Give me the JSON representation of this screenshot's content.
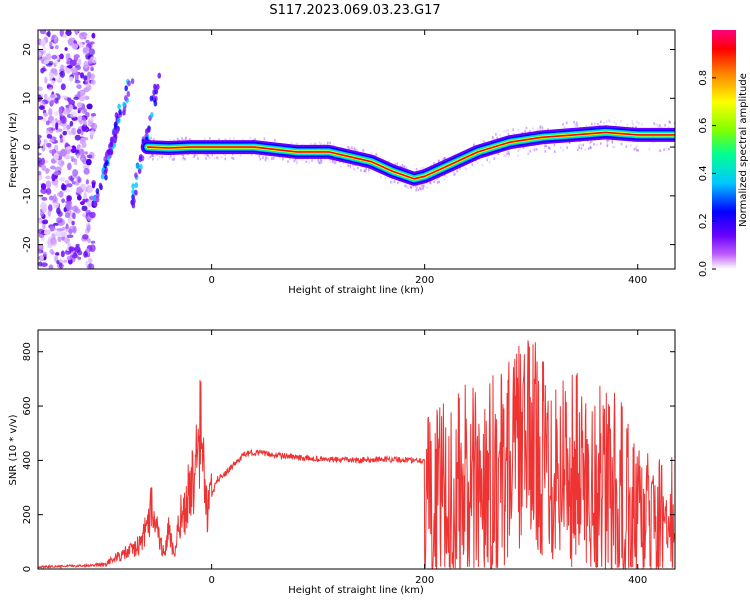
{
  "title": "S117.2023.069.03.23.G17",
  "chart_data": [
    {
      "type": "heatmap",
      "xlabel": "Height of straight line (km)",
      "ylabel": "Frequency (Hz)",
      "xlim": [
        -163,
        435
      ],
      "ylim": [
        -25,
        24
      ],
      "xticks": [
        0,
        200,
        400
      ],
      "yticks": [
        -20,
        -10,
        0,
        10,
        20
      ],
      "colorbar": {
        "label": "Normalized spectral amplitude",
        "ticks": [
          "0.0",
          "0.2",
          "0.4",
          "0.6",
          "0.8"
        ],
        "range": [
          0,
          1
        ],
        "colors": [
          "#ffffff",
          "#c060ff",
          "#6a00ff",
          "#0000ff",
          "#00c8ff",
          "#00ff90",
          "#80ff00",
          "#ffff00",
          "#ff8000",
          "#ff0000",
          "#ff0080"
        ]
      },
      "ridge": {
        "x": [
          -60,
          -40,
          -20,
          0,
          40,
          80,
          110,
          130,
          150,
          170,
          190,
          200,
          220,
          250,
          280,
          310,
          340,
          370,
          400,
          435
        ],
        "y": [
          0,
          -0.2,
          0,
          0,
          0,
          -1,
          -1,
          -2,
          -3,
          -5,
          -6.5,
          -6,
          -4,
          -1,
          1,
          2,
          2.5,
          3,
          2.5,
          2.5
        ]
      },
      "noise_region": {
        "x": [
          -163,
          -110
        ],
        "y": [
          -25,
          24
        ]
      }
    },
    {
      "type": "line",
      "xlabel": "Height of straight line (km)",
      "ylabel": "SNR (10 * v/v)",
      "xlim": [
        -163,
        435
      ],
      "ylim": [
        0,
        880
      ],
      "xticks": [
        0,
        200,
        400
      ],
      "yticks": [
        0,
        200,
        400,
        600,
        800
      ],
      "color": "#ee3333",
      "series": [
        {
          "x": [
            -163,
            -140,
            -120,
            -100,
            -90,
            -80,
            -70,
            -60,
            -55,
            -50,
            -45,
            -40,
            -35,
            -30,
            -25,
            -20,
            -15,
            -10,
            -5,
            0,
            5,
            10,
            20,
            30,
            40,
            60,
            80,
            100,
            120,
            140,
            160,
            180,
            195,
            200,
            210,
            220,
            230,
            240,
            250,
            260,
            270,
            280,
            290,
            300,
            310,
            320,
            330,
            340,
            350,
            360,
            370,
            380,
            390,
            400,
            410,
            420,
            435
          ],
          "y": [
            8,
            10,
            12,
            18,
            40,
            60,
            80,
            150,
            260,
            120,
            60,
            140,
            40,
            180,
            220,
            300,
            360,
            520,
            220,
            260,
            330,
            340,
            380,
            420,
            430,
            420,
            410,
            405,
            402,
            400,
            405,
            402,
            400,
            400,
            410,
            440,
            480,
            560,
            500,
            700,
            600,
            780,
            820,
            880,
            760,
            720,
            700,
            680,
            600,
            560,
            540,
            480,
            380,
            320,
            300,
            280,
            300
          ]
        }
      ]
    }
  ]
}
